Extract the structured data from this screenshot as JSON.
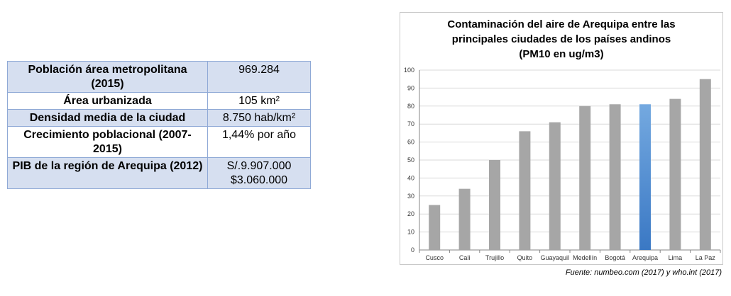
{
  "table": {
    "rows": [
      {
        "label": "Población área metropolitana (2015)",
        "values": [
          "969.284"
        ]
      },
      {
        "label": "Área urbanizada",
        "values": [
          "105 km²"
        ]
      },
      {
        "label": "Densidad media de la ciudad",
        "values": [
          "8.750 hab/km²"
        ]
      },
      {
        "label": "Crecimiento poblacional (2007-2015)",
        "values": [
          "1,44% por año"
        ]
      },
      {
        "label": "PIB de la región de Arequipa (2012)",
        "values": [
          "S/.9.907.000",
          "$3.060.000"
        ]
      }
    ]
  },
  "chart_data": {
    "type": "bar",
    "title_lines": [
      "Contaminación del aire de Arequipa entre las",
      "principales ciudades de los países andinos",
      "(PM10 en ug/m3)"
    ],
    "categories": [
      "Cusco",
      "Cali",
      "Trujillo",
      "Quito",
      "Guayaquil",
      "Medellín",
      "Bogotá",
      "Arequipa",
      "Lima",
      "La Paz"
    ],
    "values": [
      25,
      34,
      50,
      66,
      71,
      80,
      81,
      81,
      84,
      95
    ],
    "highlight_category": "Arequipa",
    "colors": {
      "bar": "#a6a6a6",
      "highlight_top": "#74a9e0",
      "highlight_bottom": "#3a78c4",
      "grid": "#d9d9d9",
      "axis": "#868686"
    },
    "ylim": [
      0,
      100
    ],
    "yticks": [
      0,
      10,
      20,
      30,
      40,
      50,
      60,
      70,
      80,
      90,
      100
    ],
    "xlabel": "",
    "ylabel": "",
    "grid": true
  },
  "source": "Fuente: numbeo.com (2017) y who.int (2017)"
}
